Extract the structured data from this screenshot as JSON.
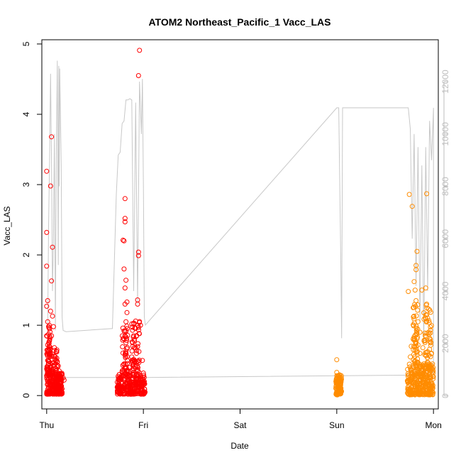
{
  "chart_data": {
    "type": "scatter",
    "title": "ATOM2 Northeast_Pacific_1 Vacc_LAS",
    "xlabel": "Date",
    "ylabel": "Vacc_LAS",
    "x_ticks": [
      "Thu",
      "Fri",
      "Sat",
      "Sun",
      "Mon"
    ],
    "y_ticks": [
      "0",
      "1",
      "2",
      "3",
      "4",
      "5"
    ],
    "y2_ticks": [
      "0",
      "2000",
      "4000",
      "6000",
      "8000",
      "10000",
      "12000"
    ],
    "xlim": [
      -0.05,
      4.05
    ],
    "ylim": [
      -0.19,
      5.06
    ],
    "y2lim": [
      -500,
      13600
    ],
    "grid": false,
    "colors": {
      "series_1": "#ff0000",
      "series_2": "#ff8c00",
      "secondary_line": "#c8c8c8",
      "axis": "#000000",
      "right_axis": "#bebebe"
    },
    "secondary_line": {
      "x": [
        0.01,
        0.02,
        0.03,
        0.04,
        0.05,
        0.06,
        0.07,
        0.08,
        0.09,
        0.1,
        0.11,
        0.12,
        0.125,
        0.13,
        0.135,
        0.15,
        0.16,
        0.17,
        0.2,
        0.68,
        0.72,
        0.74,
        0.76,
        0.78,
        0.8,
        0.82,
        0.84,
        0.86,
        0.88,
        0.9,
        0.92,
        0.94,
        0.96,
        0.98,
        0.99,
        1.0,
        1.01,
        1.02,
        3.0,
        3.02,
        3.04,
        3.05,
        3.06,
        3.07,
        3.5,
        3.74,
        3.76,
        3.78,
        3.8,
        3.82,
        3.84,
        3.86,
        3.88,
        3.9,
        3.92,
        3.94,
        3.96,
        3.98,
        4.0,
        4.0,
        4.0,
        1.0,
        0.0
      ],
      "y": [
        2400,
        6500,
        9000,
        12300,
        9000,
        4000,
        6000,
        10000,
        2500,
        9500,
        12800,
        5000,
        12600,
        8000,
        12500,
        8800,
        3000,
        2500,
        2450,
        2570,
        7700,
        9200,
        9300,
        10400,
        10500,
        11300,
        11300,
        11350,
        11300,
        4000,
        11200,
        3500,
        12000,
        10000,
        12100,
        8000,
        3000,
        2700,
        11000,
        11000,
        5600,
        2200,
        11000,
        11000,
        11000,
        11000,
        10200,
        6000,
        10000,
        4200,
        9500,
        2800,
        8800,
        2000,
        9500,
        4000,
        10500,
        9000,
        11000,
        11000,
        800,
        700,
        700
      ]
    },
    "series": [
      {
        "name": "",
        "color": "#ff0000",
        "points": [
          [
            0.0,
            3.19
          ],
          [
            0.0,
            2.32
          ],
          [
            0.0,
            1.84
          ],
          [
            0.01,
            1.35
          ],
          [
            0.0,
            1.27
          ],
          [
            0.01,
            1.05
          ],
          [
            0.02,
            0.98
          ],
          [
            0.0,
            0.85
          ],
          [
            0.01,
            0.72
          ],
          [
            0.02,
            0.6
          ],
          [
            0.01,
            0.5
          ],
          [
            0.0,
            0.38
          ],
          [
            0.02,
            0.31
          ],
          [
            0.04,
            2.98
          ],
          [
            0.05,
            3.68
          ],
          [
            0.06,
            2.11
          ],
          [
            0.05,
            1.63
          ],
          [
            0.04,
            1.2
          ],
          [
            0.06,
            1.13
          ],
          [
            0.07,
            0.98
          ],
          [
            0.05,
            0.85
          ],
          [
            0.08,
            0.68
          ],
          [
            0.1,
            0.63
          ],
          [
            0.09,
            0.55
          ],
          [
            0.11,
            0.48
          ],
          [
            0.12,
            0.42
          ],
          [
            0.13,
            0.35
          ],
          [
            0.15,
            0.3
          ],
          [
            0.17,
            0.25
          ],
          [
            0.18,
            0.22
          ],
          [
            0.75,
            0.3
          ],
          [
            0.76,
            0.25
          ],
          [
            0.78,
            0.35
          ],
          [
            0.8,
            0.45
          ],
          [
            0.81,
            0.58
          ],
          [
            0.82,
            0.75
          ],
          [
            0.8,
            0.92
          ],
          [
            0.82,
            1.05
          ],
          [
            0.83,
            1.18
          ],
          [
            0.81,
            1.3
          ],
          [
            0.79,
            2.21
          ],
          [
            0.8,
            2.2
          ],
          [
            0.81,
            2.47
          ],
          [
            0.81,
            2.52
          ],
          [
            0.81,
            2.8
          ],
          [
            0.8,
            1.8
          ],
          [
            0.82,
            1.64
          ],
          [
            0.81,
            1.53
          ],
          [
            0.83,
            1.33
          ],
          [
            0.86,
            0.4
          ],
          [
            0.88,
            0.55
          ],
          [
            0.89,
            0.7
          ],
          [
            0.9,
            0.85
          ],
          [
            0.91,
            0.96
          ],
          [
            0.92,
            1.06
          ],
          [
            0.94,
            1.36
          ],
          [
            0.94,
            1.3
          ],
          [
            0.95,
            2.04
          ],
          [
            0.95,
            1.99
          ],
          [
            0.95,
            4.55
          ],
          [
            0.96,
            4.91
          ],
          [
            0.97,
            1.0
          ],
          [
            0.99,
            0.5
          ],
          [
            1.0,
            0.32
          ],
          [
            1.01,
            0.2
          ]
        ]
      },
      {
        "name": "",
        "color": "#ff8c00",
        "points": [
          [
            3.0,
            0.51
          ],
          [
            3.0,
            0.33
          ],
          [
            3.01,
            0.28
          ],
          [
            3.02,
            0.22
          ],
          [
            3.03,
            0.17
          ],
          [
            3.74,
            1.48
          ],
          [
            3.75,
            2.86
          ],
          [
            3.78,
            2.69
          ],
          [
            3.8,
            1.62
          ],
          [
            3.82,
            1.85
          ],
          [
            3.82,
            1.79
          ],
          [
            3.83,
            2.05
          ],
          [
            3.81,
            1.5
          ],
          [
            3.79,
            1.25
          ],
          [
            3.82,
            1.35
          ],
          [
            3.84,
            1.05
          ],
          [
            3.86,
            0.9
          ],
          [
            3.88,
            1.5
          ],
          [
            3.93,
            2.87
          ],
          [
            3.92,
            1.53
          ],
          [
            3.93,
            1.3
          ],
          [
            3.94,
            1.1
          ],
          [
            3.95,
            0.9
          ],
          [
            3.97,
            0.75
          ],
          [
            3.98,
            0.6
          ],
          [
            3.99,
            0.45
          ],
          [
            3.97,
            0.35
          ],
          [
            3.76,
            0.55
          ],
          [
            3.77,
            0.7
          ],
          [
            3.79,
            0.8
          ],
          [
            3.81,
            0.65
          ],
          [
            3.84,
            0.72
          ],
          [
            3.86,
            0.6
          ],
          [
            3.89,
            0.68
          ],
          [
            3.91,
            0.58
          ],
          [
            3.9,
            0.45
          ]
        ]
      }
    ],
    "dense_clusters": [
      {
        "series": 0,
        "x_range": [
          0.0,
          0.16
        ],
        "y_range": [
          0.02,
          0.32
        ],
        "count": 240
      },
      {
        "series": 0,
        "x_range": [
          0.0,
          0.04
        ],
        "y_range": [
          0.3,
          1.02
        ],
        "count": 60
      },
      {
        "series": 0,
        "x_range": [
          0.05,
          0.11
        ],
        "y_range": [
          0.3,
          0.65
        ],
        "count": 40
      },
      {
        "series": 0,
        "x_range": [
          0.73,
          1.02
        ],
        "y_range": [
          0.02,
          0.3
        ],
        "count": 260
      },
      {
        "series": 0,
        "x_range": [
          0.78,
          0.84
        ],
        "y_range": [
          0.3,
          1.0
        ],
        "count": 45
      },
      {
        "series": 0,
        "x_range": [
          0.88,
          0.96
        ],
        "y_range": [
          0.3,
          1.06
        ],
        "count": 60
      },
      {
        "series": 1,
        "x_range": [
          2.99,
          3.05
        ],
        "y_range": [
          0.01,
          0.3
        ],
        "count": 110
      },
      {
        "series": 1,
        "x_range": [
          3.73,
          4.0
        ],
        "y_range": [
          0.01,
          0.45
        ],
        "count": 300
      },
      {
        "series": 1,
        "x_range": [
          3.79,
          3.84
        ],
        "y_range": [
          0.4,
          1.3
        ],
        "count": 55
      },
      {
        "series": 1,
        "x_range": [
          3.9,
          3.98
        ],
        "y_range": [
          0.4,
          1.3
        ],
        "count": 55
      }
    ]
  }
}
